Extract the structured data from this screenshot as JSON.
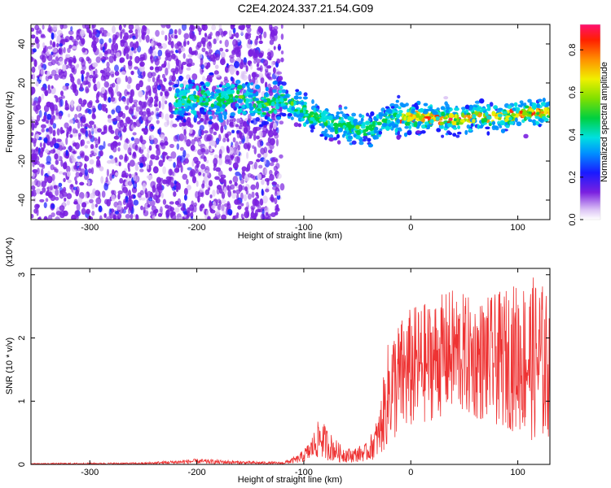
{
  "title": "C2E4.2024.337.21.54.G09",
  "chart_data": [
    {
      "type": "heatmap",
      "xlabel": "Height of straight line (km)",
      "ylabel": "Frequency (Hz)",
      "xlim": [
        -355,
        130
      ],
      "ylim": [
        -50,
        50
      ],
      "xticks": [
        -300,
        -200,
        -100,
        0,
        100
      ],
      "yticks": [
        -40,
        -20,
        0,
        20,
        40
      ],
      "colorbar": {
        "label": "Normalized spectral amplitude",
        "range": [
          0.0,
          0.92
        ],
        "ticks": [
          0.0,
          0.2,
          0.4,
          0.6,
          0.8
        ]
      },
      "signal_track": {
        "x": [
          -220,
          -200,
          -180,
          -160,
          -140,
          -120,
          -100,
          -80,
          -60,
          -40,
          -20,
          0,
          20,
          40,
          60,
          80,
          100,
          120,
          130
        ],
        "frequency": [
          10,
          12,
          11,
          13,
          8,
          12,
          5,
          0,
          -2,
          -4,
          2,
          3,
          2,
          1,
          3,
          2,
          4,
          5,
          5
        ]
      },
      "noise_region": {
        "x": [
          -355,
          -120
        ],
        "frequency": [
          -50,
          50
        ]
      }
    },
    {
      "type": "line",
      "xlabel": "Height of straight line (km)",
      "ylabel": "SNR (10 * v/v)",
      "yscale_note": "(x10^4)",
      "xlim": [
        -355,
        130
      ],
      "ylim": [
        0,
        3.1
      ],
      "xticks": [
        -300,
        -200,
        -100,
        0,
        100
      ],
      "yticks": [
        0,
        1,
        2,
        3
      ],
      "series": [
        {
          "color": "#ee3333",
          "envelope_x": [
            -355,
            -250,
            -200,
            -150,
            -120,
            -105,
            -95,
            -85,
            -75,
            -65,
            -55,
            -40,
            -30,
            -20,
            0,
            20,
            40,
            60,
            80,
            100,
            120,
            130
          ],
          "envelope_max": [
            0.02,
            0.03,
            0.09,
            0.05,
            0.04,
            0.15,
            0.35,
            0.75,
            0.5,
            0.3,
            0.25,
            0.35,
            0.8,
            2.1,
            2.5,
            2.6,
            2.8,
            2.6,
            2.7,
            2.9,
            3.0,
            2.6
          ],
          "envelope_base": [
            0.0,
            0.0,
            0.01,
            0.0,
            0.0,
            0.02,
            0.05,
            0.1,
            0.05,
            0.03,
            0.03,
            0.05,
            0.1,
            0.3,
            0.5,
            0.7,
            0.8,
            0.7,
            0.6,
            0.5,
            0.3,
            0.4
          ]
        }
      ]
    }
  ]
}
